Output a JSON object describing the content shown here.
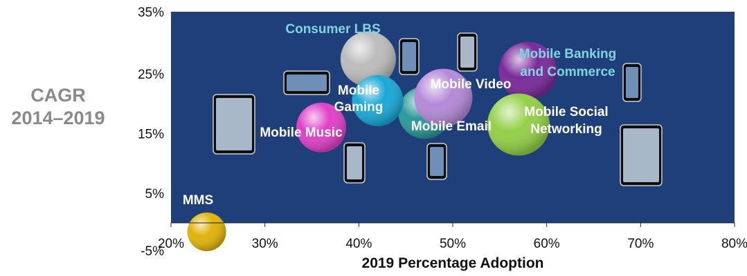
{
  "chart_data": {
    "type": "scatter",
    "title": "",
    "xlabel": "2019 Percentage Adoption",
    "ylabel_lines": [
      "CAGR",
      "2014–2019"
    ],
    "xlim": [
      20,
      80
    ],
    "ylim": [
      0,
      35
    ],
    "x_ticks": [
      "20%",
      "30%",
      "40%",
      "50%",
      "60%",
      "70%",
      "80%"
    ],
    "y_ticks": [
      {
        "value": 35,
        "label": "35%"
      },
      {
        "value": 25,
        "label": "25%"
      },
      {
        "value": 15,
        "label": "15%"
      },
      {
        "value": 5,
        "label": "5%"
      },
      {
        "value": -5,
        "label": "-5%"
      }
    ],
    "grid": false,
    "plot_background": "#1e3f7a",
    "points": [
      {
        "name": "MMS",
        "x": 23.8,
        "y": -1.5,
        "color": "#e0b30a",
        "label_color": "#ffffff"
      },
      {
        "name": "Mobile Music",
        "x": 36,
        "y": 16,
        "color": "#e040c8",
        "label_color": "#ffffff"
      },
      {
        "name": "Mobile Gaming",
        "x": 42,
        "y": 20.5,
        "color": "#1aa8d8",
        "label_color": "#ffffff"
      },
      {
        "name": "Consumer LBS",
        "x": 41,
        "y": 27.5,
        "color": "#bcbcbc",
        "label_color": "#7fd6e0"
      },
      {
        "name": "Mobile Email",
        "x": 47,
        "y": 18.5,
        "color": "#2a9a9a",
        "label_color": "#ffffff"
      },
      {
        "name": "Mobile Video",
        "x": 49,
        "y": 21,
        "color": "#b48ad8",
        "label_color": "#ffffff"
      },
      {
        "name": "Mobile Social Networking",
        "x": 57,
        "y": 16.5,
        "color": "#94d048",
        "label_color": "#ffffff"
      },
      {
        "name": "Mobile Banking and Commerce",
        "x": 58,
        "y": 25.5,
        "color": "#7a2a9a",
        "label_color": "#7fd6e0"
      }
    ],
    "device_icons": [
      "tablet-icon",
      "smartphone-icon",
      "handheld-icon",
      "phone-icon",
      "tablet-icon",
      "phone-icon",
      "phone-icon",
      "phone-icon",
      "phone-icon"
    ]
  }
}
